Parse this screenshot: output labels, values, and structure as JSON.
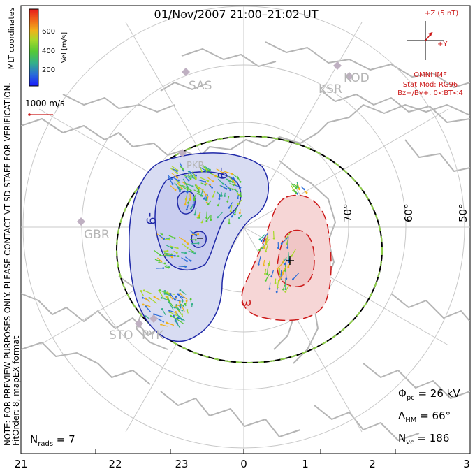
{
  "title": "01/Nov/2007 21:00–21:02 UT",
  "colorbar": {
    "label": "Vel [m/s]",
    "ticks": [
      "600",
      "400",
      "200"
    ],
    "colors": [
      "#1a1aff",
      "#2a6cd8",
      "#33b088",
      "#55c936",
      "#a8d82a",
      "#f0b21a",
      "#f06a18",
      "#e61a1a"
    ]
  },
  "coordinate_label": "MLT coordinates",
  "scale_vector_label": "1000 m/s",
  "note_line1": "NOTE: FOR PREVIEW PURPOSES ONLY. PLEASE CONTACT VT-SD STAFF FOR VERIFICATION.",
  "note_line2": "FitOrder: 8, mapEX format",
  "imf": {
    "axis_top": "+Z (5 nT)",
    "axis_right": "+Y",
    "source": "OMNI IMF",
    "model_line1": "Stat Mod: RG96",
    "model_line2": "Bz+/By+, 0<BT<4"
  },
  "latitude_labels": [
    "70°",
    "60°",
    "50°"
  ],
  "stations": [
    "SAS",
    "KSR",
    "KOD",
    "PKR",
    "GBR",
    "STO",
    "PYK"
  ],
  "contour_labels": {
    "negative": "-9",
    "positive": "3"
  },
  "stats": {
    "phi_sym": "Φ",
    "phi_sub": "pc",
    "phi_val": " = 26 kV",
    "lambda_sym": "Λ",
    "lambda_sub": "HM",
    "lambda_val": " = 66°",
    "nvc_sym": "N",
    "nvc_sub": "vc",
    "nvc_val": " = 186",
    "nrads_sym": "N",
    "nrads_sub": "rads",
    "nrads_val": " = 7"
  },
  "mlt_axis": {
    "ticks": [
      "21",
      "22",
      "23",
      "0",
      "1",
      "2",
      "3"
    ]
  }
}
